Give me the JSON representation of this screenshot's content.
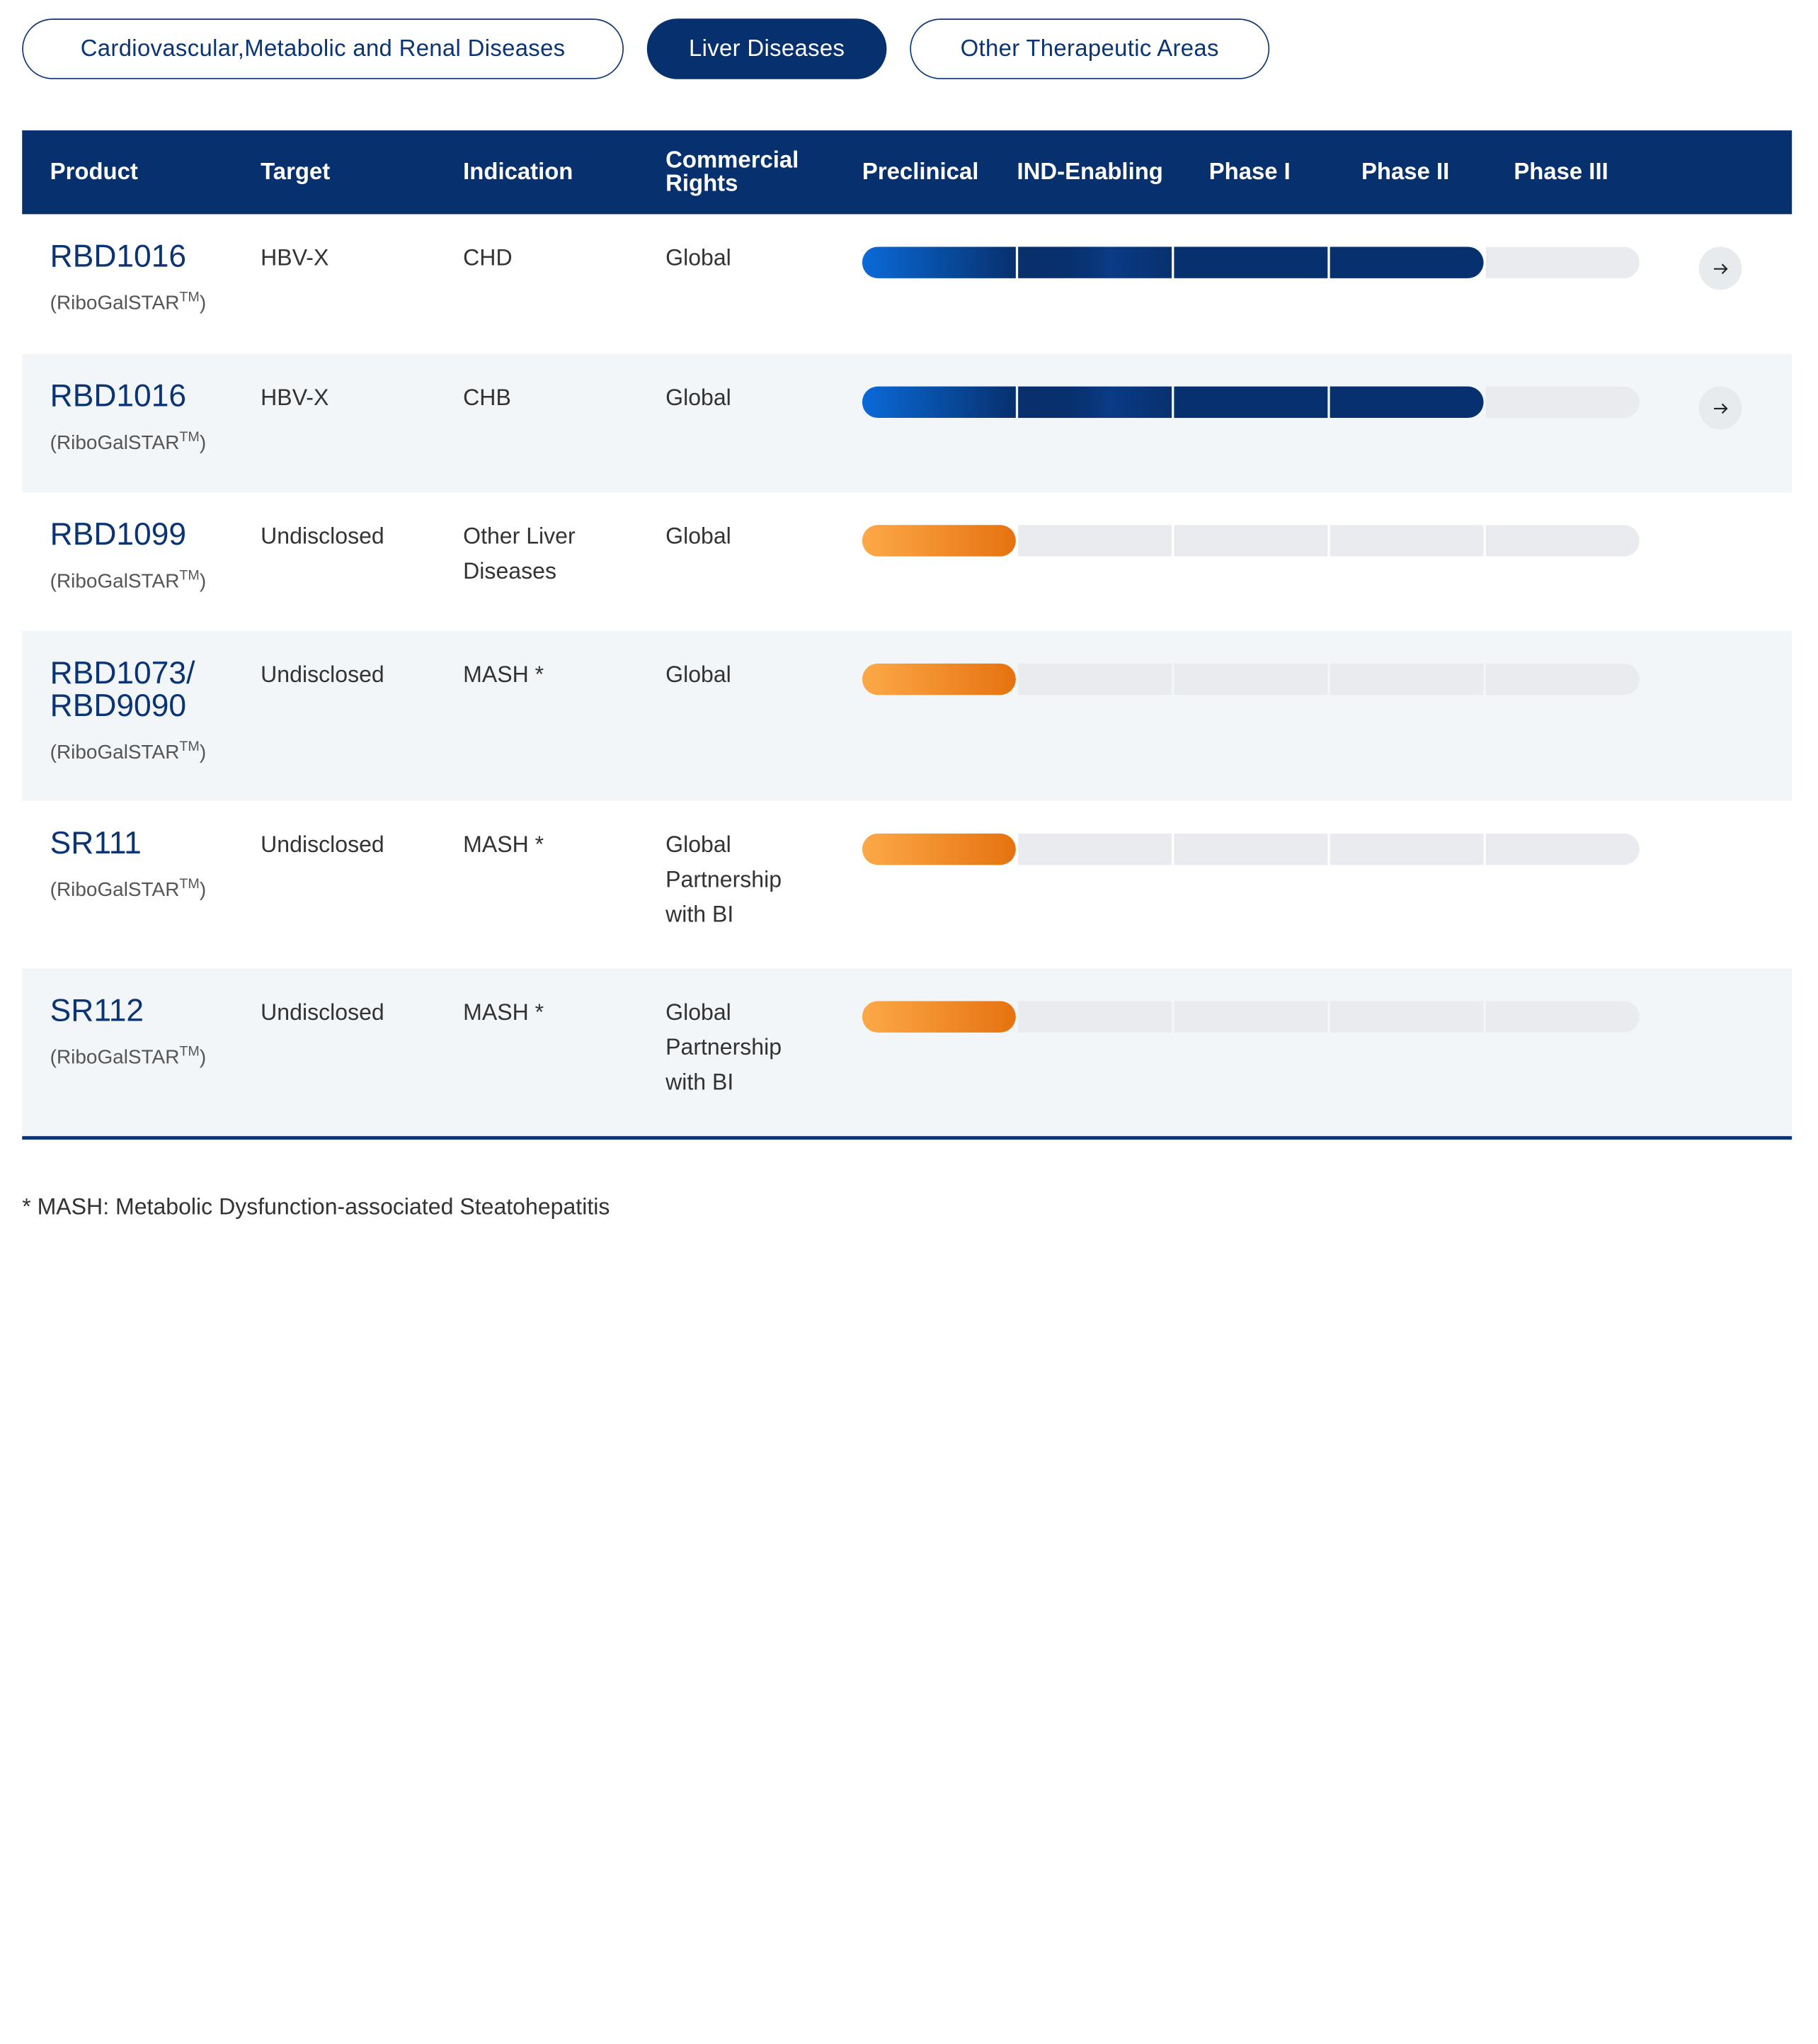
{
  "tabs": [
    {
      "label": "Cardiovascular,Metabolic and Renal Diseases",
      "active": false
    },
    {
      "label": "Liver Diseases",
      "active": true
    },
    {
      "label": "Other Therapeutic Areas",
      "active": false
    }
  ],
  "table": {
    "headers": {
      "product": "Product",
      "target": "Target",
      "indication": "Indication",
      "rights_line1": "Commercial",
      "rights_line2": "Rights",
      "preclinical": "Preclinical",
      "ind": "IND-Enabling",
      "phase1": "Phase I",
      "phase2": "Phase II",
      "phase3": "Phase III"
    },
    "platform": "(RiboGalSTAR",
    "tm": "TM",
    "close_paren": ")",
    "rows": [
      {
        "name": "RBD1016",
        "target": "HBV-X",
        "indication": "CHD",
        "rights": "Global",
        "stages_completed": 4,
        "color": "blue",
        "has_arrow": true
      },
      {
        "name": "RBD1016",
        "target": "HBV-X",
        "indication": "CHB",
        "rights": "Global",
        "stages_completed": 4,
        "color": "blue",
        "has_arrow": true
      },
      {
        "name": "RBD1099",
        "target": "Undisclosed",
        "indication": "Other Liver Diseases",
        "rights": "Global",
        "stages_completed": 1,
        "color": "orange",
        "has_arrow": false
      },
      {
        "name": "RBD1073/ RBD9090",
        "target": "Undisclosed",
        "indication": "MASH *",
        "rights": "Global",
        "stages_completed": 1,
        "color": "orange",
        "has_arrow": false
      },
      {
        "name": "SR111",
        "target": "Undisclosed",
        "indication": "MASH *",
        "rights": "Global Partnership with BI",
        "stages_completed": 1,
        "color": "orange",
        "has_arrow": false
      },
      {
        "name": "SR112",
        "target": "Undisclosed",
        "indication": "MASH *",
        "rights": "Global Partnership with BI",
        "stages_completed": 1,
        "color": "orange",
        "has_arrow": false
      }
    ]
  },
  "colors": {
    "navy": "#07306e",
    "blue_start": "#0a6ad8",
    "orange_start": "#fca948",
    "orange_end": "#e6720f",
    "empty": "#e9ebee",
    "alt_row": "#f3f6f9"
  },
  "icons": {
    "arrow": "arrow-right-icon"
  },
  "footnote": "* MASH: Metabolic Dysfunction-associated Steatohepatitis"
}
